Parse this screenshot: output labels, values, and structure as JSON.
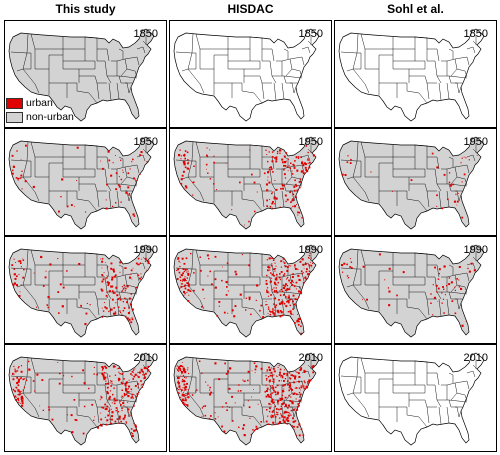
{
  "columns": [
    {
      "title": "This study"
    },
    {
      "title": "HISDAC"
    },
    {
      "title": "Sohl et al."
    }
  ],
  "legend": {
    "urban_label": "urban",
    "nonurban_label": "non-urban",
    "urban_color": "#e00000",
    "nonurban_color": "#d3d3d3"
  },
  "colors": {
    "map_fill": "#d3d3d3",
    "empty_fill": "#ffffff",
    "state_border": "#000000",
    "urban": "#e00000"
  },
  "panels": [
    {
      "year": "1850",
      "filled": true,
      "urban_level": 0.0
    },
    {
      "year": "1850",
      "filled": false,
      "urban_level": 0.0
    },
    {
      "year": "1850",
      "filled": false,
      "urban_level": 0.0
    },
    {
      "year": "1950",
      "filled": true,
      "urban_level": 0.15
    },
    {
      "year": "1950",
      "filled": true,
      "urban_level": 0.45
    },
    {
      "year": "1950",
      "filled": true,
      "urban_level": 0.08
    },
    {
      "year": "1990",
      "filled": true,
      "urban_level": 0.4
    },
    {
      "year": "1990",
      "filled": true,
      "urban_level": 0.8
    },
    {
      "year": "1990",
      "filled": true,
      "urban_level": 0.15
    },
    {
      "year": "2010",
      "filled": true,
      "urban_level": 0.65
    },
    {
      "year": "2010",
      "filled": true,
      "urban_level": 1.0
    },
    {
      "year": "2010",
      "filled": false,
      "urban_level": 0.0
    }
  ]
}
